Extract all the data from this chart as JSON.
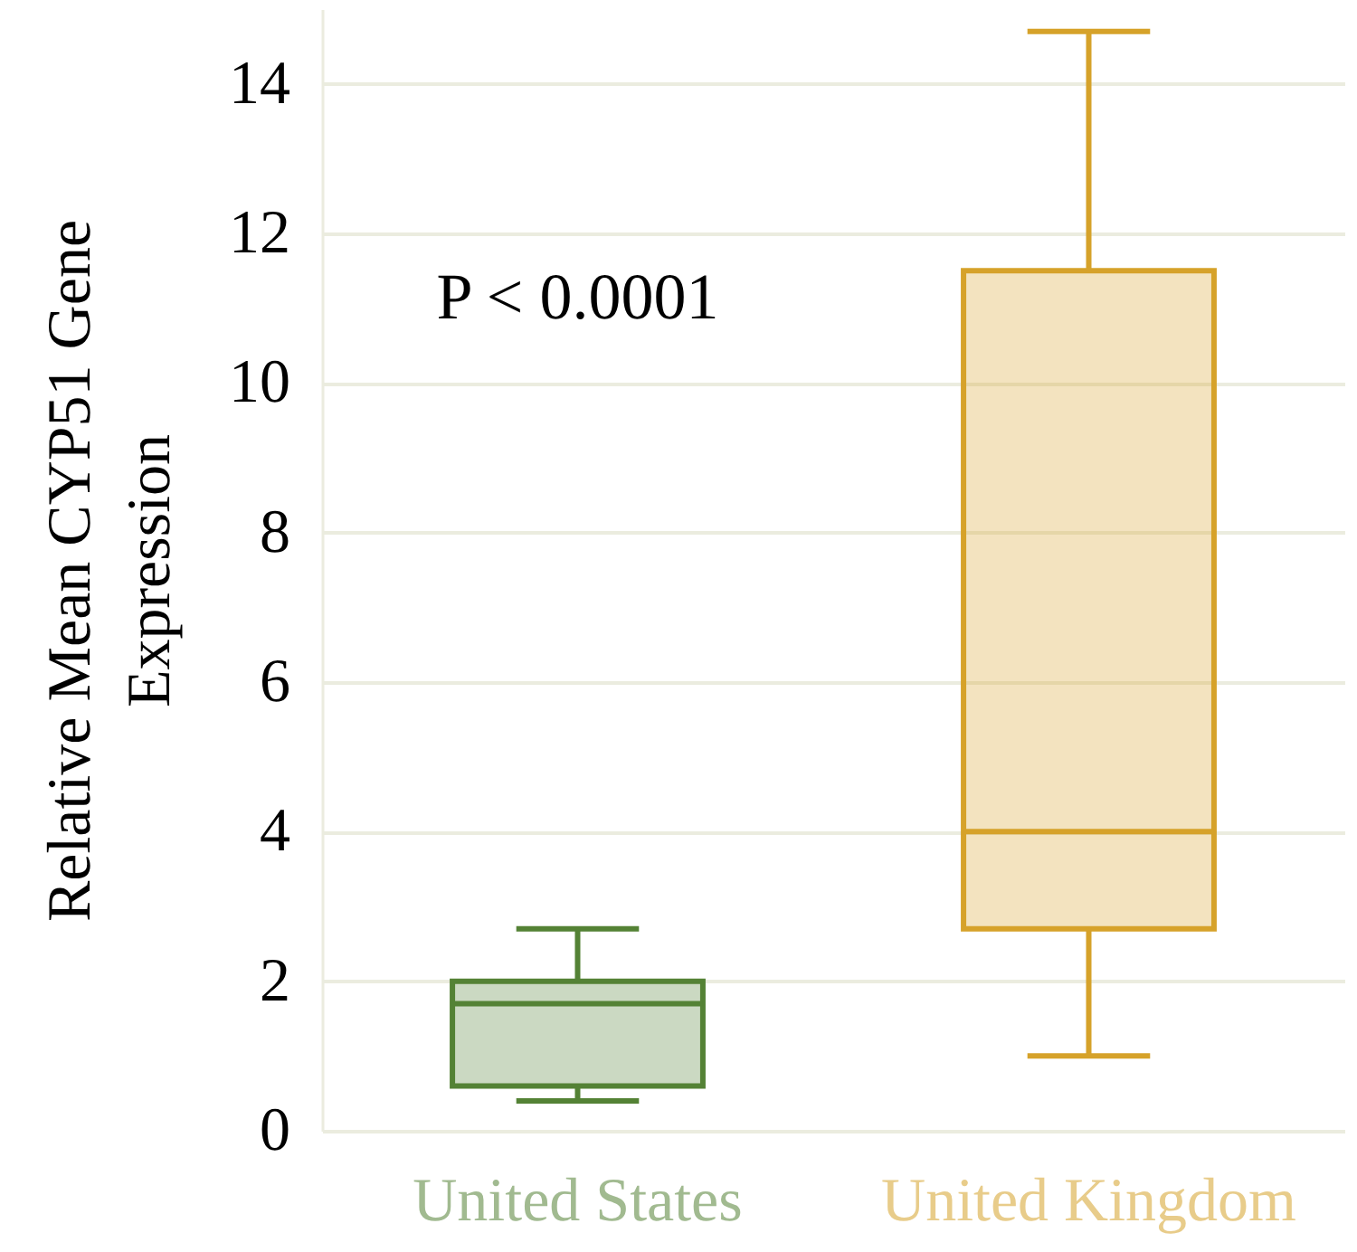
{
  "chart_data": {
    "type": "box",
    "categories": [
      "United States",
      "United Kingdom"
    ],
    "boxes": [
      {
        "low": 0.4,
        "q1": 0.6,
        "median": 1.7,
        "q3": 2.0,
        "high": 2.7
      },
      {
        "low": 1.0,
        "q1": 2.7,
        "median": 4.0,
        "q3": 11.5,
        "high": 14.7
      }
    ],
    "colors": [
      "#548235",
      "#d6a22a"
    ],
    "ylabel": "Relative Mean CYP51 Gene Expression",
    "ylim": [
      0,
      15
    ],
    "yticks": [
      0,
      2,
      4,
      6,
      8,
      10,
      12,
      14
    ],
    "grid": "y",
    "annotations": [
      "P < 0.0001"
    ]
  }
}
